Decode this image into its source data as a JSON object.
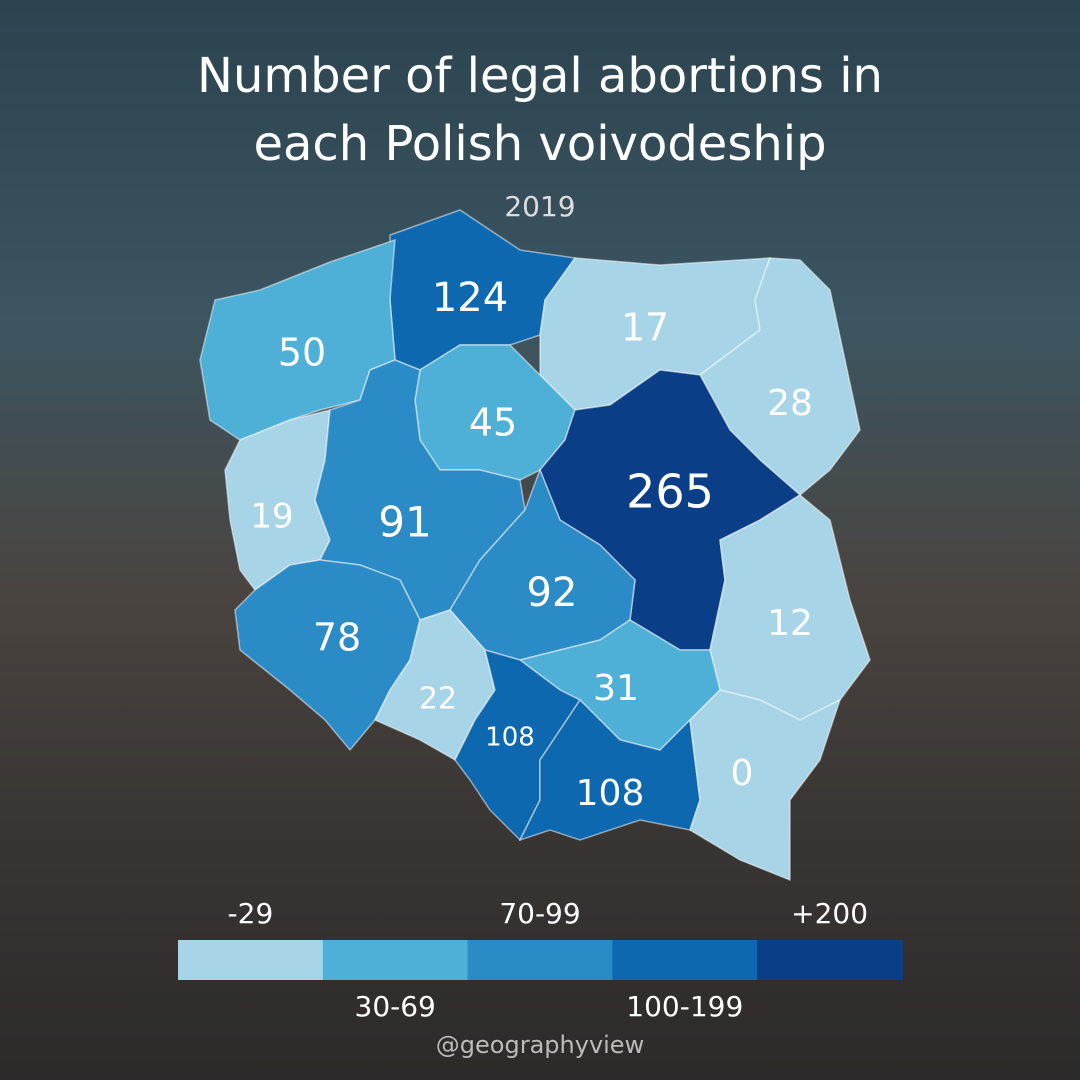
{
  "chart_data": {
    "type": "map",
    "title": "Number of legal abortions in each Polish voivodeship",
    "subtitle": "2019",
    "regions": [
      {
        "value": 124,
        "color": "#0e68b0"
      },
      {
        "value": 50,
        "color": "#4eb0d6"
      },
      {
        "value": 17,
        "color": "#a8d4e8"
      },
      {
        "value": 28,
        "color": "#a8d4e8"
      },
      {
        "value": 45,
        "color": "#4eb0d6"
      },
      {
        "value": 19,
        "color": "#a8d4e8"
      },
      {
        "value": 91,
        "color": "#2b8bc6"
      },
      {
        "value": 265,
        "color": "#0a3f87"
      },
      {
        "value": 92,
        "color": "#2b8bc6"
      },
      {
        "value": 12,
        "color": "#a8d4e8"
      },
      {
        "value": 78,
        "color": "#2b8bc6"
      },
      {
        "value": 22,
        "color": "#a8d4e8"
      },
      {
        "value": 31,
        "color": "#4eb0d6"
      },
      {
        "value": 108,
        "color": "#0e68b0"
      },
      {
        "value": 108,
        "color": "#0e68b0"
      },
      {
        "value": 0,
        "color": "#a8d4e8"
      }
    ],
    "legend": [
      {
        "label": "-29",
        "color": "#a8d4e8"
      },
      {
        "label": "30-69",
        "color": "#4eb0d6"
      },
      {
        "label": "70-99",
        "color": "#2b8bc6"
      },
      {
        "label": "100-199",
        "color": "#0e68b0"
      },
      {
        "label": "+200",
        "color": "#0a3f87"
      }
    ],
    "credit": "@geographyview"
  }
}
